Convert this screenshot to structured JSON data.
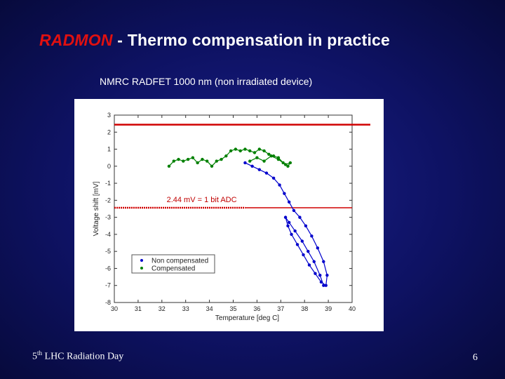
{
  "slide": {
    "title_accent": "RADMON",
    "title_rest": " - Thermo compensation in practice",
    "subtitle": "NMRC RADFET 1000 nm (non irradiated device)",
    "footer_num": "5",
    "footer_sup": "th",
    "footer_text": " LHC Radiation Day",
    "page_number": "6"
  },
  "chart_data": {
    "type": "scatter",
    "xlabel": "Temperature [deg C]",
    "ylabel": "Voltage shift [mV]",
    "xlim": [
      30,
      40
    ],
    "ylim": [
      -8,
      3
    ],
    "xticks": [
      "30",
      "31",
      "32",
      "33",
      "34",
      "35",
      "36",
      "37",
      "38",
      "39",
      "40"
    ],
    "yticks": [
      "3",
      "2",
      "1",
      "0",
      "-1",
      "-2",
      "-3",
      "-4",
      "-5",
      "-6",
      "-7",
      "-8"
    ],
    "grid": false,
    "legend_position": "bottom-left",
    "colors": {
      "upper_limit": "#d00000",
      "lower_limit": "#d00000",
      "non_compensated": "#0000cc",
      "compensated": "#008000"
    },
    "reference_lines": [
      {
        "y": 2.44
      },
      {
        "y": -2.44,
        "label": "2.44 mV = 1 bit ADC"
      }
    ],
    "series": [
      {
        "name": "Non compensated",
        "x": [
          35.5,
          35.8,
          36.1,
          36.4,
          36.7,
          36.95,
          37.15,
          37.35,
          37.55,
          37.8,
          38.05,
          38.3,
          38.55,
          38.8,
          38.95,
          38.9,
          38.7,
          38.45,
          38.2,
          37.95,
          37.7,
          37.45,
          37.3,
          37.2,
          37.35,
          37.6,
          37.9,
          38.15,
          38.4,
          38.65,
          38.8
        ],
        "y": [
          0.2,
          0.0,
          -0.2,
          -0.4,
          -0.7,
          -1.1,
          -1.6,
          -2.1,
          -2.6,
          -3.0,
          -3.5,
          -4.1,
          -4.8,
          -5.6,
          -6.4,
          -7.0,
          -6.8,
          -6.3,
          -5.8,
          -5.2,
          -4.6,
          -4.0,
          -3.5,
          -3.0,
          -3.3,
          -3.8,
          -4.4,
          -5.0,
          -5.6,
          -6.4,
          -7.0
        ]
      },
      {
        "name": "Compensated",
        "x": [
          32.3,
          32.5,
          32.7,
          32.9,
          33.1,
          33.3,
          33.5,
          33.7,
          33.9,
          34.1,
          34.3,
          34.5,
          34.7,
          34.9,
          35.1,
          35.3,
          35.5,
          35.7,
          35.9,
          36.1,
          36.3,
          36.5,
          36.7,
          36.9,
          37.1,
          37.3,
          37.4,
          37.2,
          36.9,
          36.6,
          36.3,
          36.0,
          35.7
        ],
        "y": [
          0.0,
          0.3,
          0.4,
          0.3,
          0.4,
          0.5,
          0.2,
          0.4,
          0.3,
          0.0,
          0.3,
          0.4,
          0.6,
          0.9,
          1.0,
          0.9,
          1.0,
          0.9,
          0.8,
          1.0,
          0.9,
          0.7,
          0.6,
          0.5,
          0.2,
          0.0,
          0.2,
          0.1,
          0.4,
          0.6,
          0.3,
          0.5,
          0.3
        ]
      }
    ]
  }
}
